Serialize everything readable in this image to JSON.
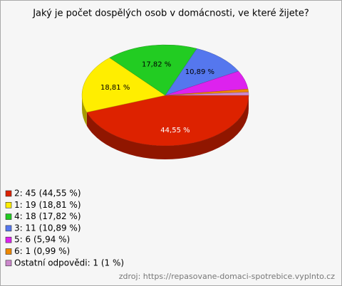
{
  "chart_data": {
    "type": "pie",
    "title": "Jaký je počet dospělých osob v domácnosti, ve které žijete?",
    "categories": [
      "2: 45 (44,55 %)",
      "1: 19 (18,81 %)",
      "4: 18 (17,82 %)",
      "3: 11 (10,89 %)",
      "5: 6 (5,94 %)",
      "6: 1 (0,99 %)",
      "Ostatní odpovědi: 1 (1 %)"
    ],
    "values": [
      44.55,
      18.81,
      17.82,
      10.89,
      5.94,
      0.99,
      1
    ],
    "value_labels": [
      "44,55 %",
      "18,81 %",
      "17,82 %",
      "10,89 %",
      null,
      null,
      null
    ],
    "colors": [
      "#dd2200",
      "#ffee00",
      "#22cc22",
      "#5577ee",
      "#dd22ee",
      "#ee8800",
      "#cc88cc"
    ],
    "legend": "bottom-left",
    "source": "zdroj: https://repasovane-domaci-spotrebice.vyplnto.cz"
  }
}
